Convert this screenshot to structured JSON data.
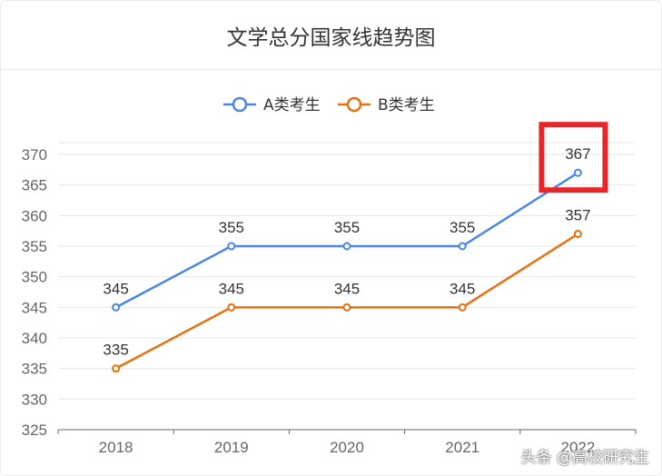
{
  "chart_data": {
    "type": "line",
    "title": "文学总分国家线趋势图",
    "categories": [
      "2018",
      "2019",
      "2020",
      "2021",
      "2022"
    ],
    "series": [
      {
        "name": "A类考生",
        "values": [
          345,
          355,
          355,
          355,
          367
        ],
        "color": "#4a86e8"
      },
      {
        "name": "B类考生",
        "values": [
          335,
          345,
          345,
          345,
          357
        ],
        "color": "#e8700c"
      }
    ],
    "ylim": [
      325,
      370
    ],
    "yticks": [
      "325",
      "330",
      "335",
      "340",
      "345",
      "350",
      "355",
      "360",
      "365",
      "370"
    ],
    "legend_position": "top-center",
    "grid": true,
    "highlight": {
      "series": "A类考生",
      "category": "2022",
      "color": "#e8262a"
    }
  },
  "watermark": "头条 @高校研究生"
}
